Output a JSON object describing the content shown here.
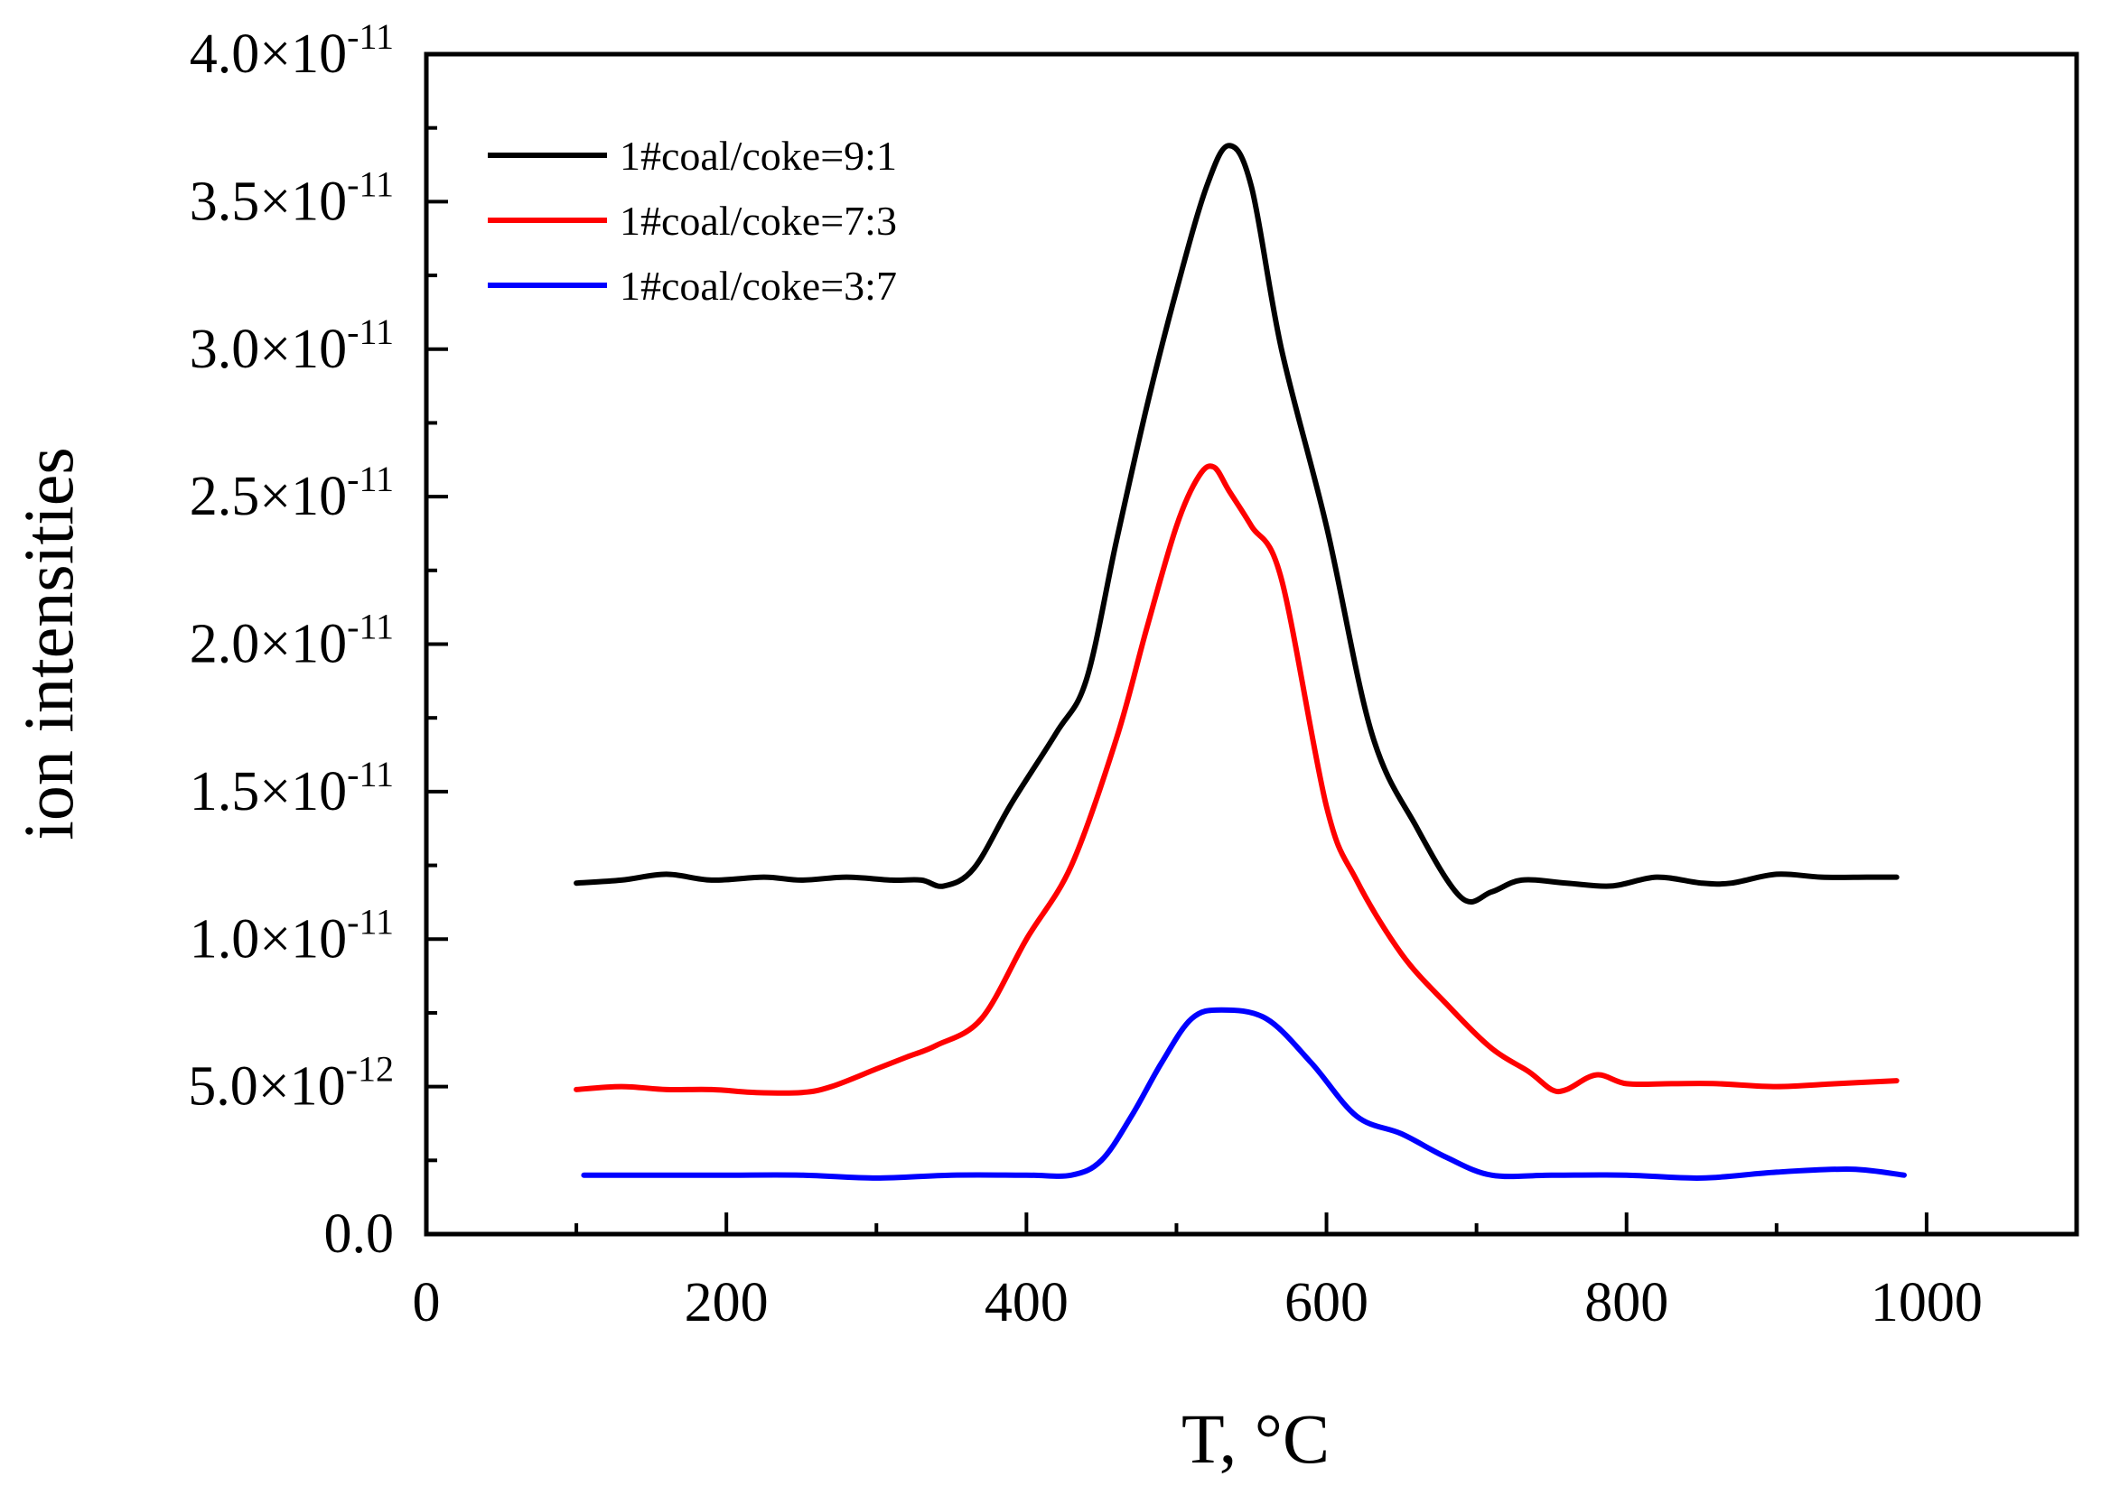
{
  "chart_data": {
    "type": "line",
    "title": "",
    "xlabel": "T, °C",
    "ylabel": "ion intensities",
    "xlim": [
      0,
      1100
    ],
    "ylim": [
      0,
      4e-11
    ],
    "x_ticks": [
      {
        "value": 0,
        "label": "0"
      },
      {
        "value": 200,
        "label": "200"
      },
      {
        "value": 400,
        "label": "400"
      },
      {
        "value": 600,
        "label": "600"
      },
      {
        "value": 800,
        "label": "800"
      },
      {
        "value": 1000,
        "label": "1000"
      }
    ],
    "y_ticks": [
      {
        "value": 0,
        "label": "0.0",
        "exp": ""
      },
      {
        "value": 5e-12,
        "label": "5.0×10",
        "exp": "-12"
      },
      {
        "value": 1e-11,
        "label": "1.0×10",
        "exp": "-11"
      },
      {
        "value": 1.5e-11,
        "label": "1.5×10",
        "exp": "-11"
      },
      {
        "value": 2e-11,
        "label": "2.0×10",
        "exp": "-11"
      },
      {
        "value": 2.5e-11,
        "label": "2.5×10",
        "exp": "-11"
      },
      {
        "value": 3e-11,
        "label": "3.0×10",
        "exp": "-11"
      },
      {
        "value": 3.5e-11,
        "label": "3.5×10",
        "exp": "-11"
      },
      {
        "value": 4e-11,
        "label": "4.0×10",
        "exp": "-11"
      }
    ],
    "legend_position": "top-left",
    "grid": false,
    "series": [
      {
        "name": "1#coal/coke=9:1",
        "color": "#000000",
        "x": [
          100,
          130,
          160,
          190,
          225,
          250,
          280,
          310,
          330,
          345,
          365,
          390,
          420,
          440,
          460,
          480,
          500,
          520,
          535,
          550,
          570,
          600,
          630,
          660,
          690,
          710,
          730,
          760,
          790,
          820,
          850,
          870,
          900,
          930,
          960,
          980
        ],
        "y": [
          1.19e-11,
          1.2e-11,
          1.22e-11,
          1.2e-11,
          1.21e-11,
          1.2e-11,
          1.21e-11,
          1.2e-11,
          1.2e-11,
          1.18e-11,
          1.24e-11,
          1.46e-11,
          1.7e-11,
          1.88e-11,
          2.35e-11,
          2.8e-11,
          3.2e-11,
          3.55e-11,
          3.69e-11,
          3.55e-11,
          3e-11,
          2.4e-11,
          1.7e-11,
          1.38e-11,
          1.14e-11,
          1.16e-11,
          1.2e-11,
          1.19e-11,
          1.18e-11,
          1.21e-11,
          1.19e-11,
          1.19e-11,
          1.22e-11,
          1.21e-11,
          1.21e-11,
          1.21e-11
        ]
      },
      {
        "name": "1#coal/coke=7:3",
        "color": "#ff0000",
        "x": [
          100,
          130,
          160,
          190,
          220,
          250,
          270,
          300,
          320,
          340,
          370,
          400,
          430,
          460,
          480,
          500,
          515,
          525,
          535,
          550,
          570,
          600,
          620,
          650,
          680,
          710,
          735,
          750,
          760,
          780,
          800,
          830,
          860,
          900,
          940,
          980
        ],
        "y": [
          4.9e-12,
          5e-12,
          4.9e-12,
          4.9e-12,
          4.8e-12,
          4.8e-12,
          5e-12,
          5.6e-12,
          6e-12,
          6.4e-12,
          7.3e-12,
          1e-11,
          1.25e-11,
          1.68e-11,
          2.05e-11,
          2.4e-11,
          2.57e-11,
          2.6e-11,
          2.52e-11,
          2.4e-11,
          2.22e-11,
          1.45e-11,
          1.2e-11,
          9.5e-12,
          7.8e-12,
          6.3e-12,
          5.5e-12,
          4.9e-12,
          4.9e-12,
          5.4e-12,
          5.1e-12,
          5.1e-12,
          5.1e-12,
          5e-12,
          5.1e-12,
          5.2e-12
        ]
      },
      {
        "name": "1#coal/coke=3:7",
        "color": "#0000ff",
        "x": [
          105,
          150,
          200,
          250,
          300,
          350,
          400,
          430,
          450,
          470,
          490,
          510,
          530,
          560,
          590,
          620,
          650,
          680,
          710,
          750,
          800,
          850,
          900,
          950,
          985
        ],
        "y": [
          2e-12,
          2e-12,
          2e-12,
          2e-12,
          1.9e-12,
          2e-12,
          2e-12,
          2e-12,
          2.5e-12,
          4e-12,
          5.8e-12,
          7.3e-12,
          7.6e-12,
          7.3e-12,
          5.8e-12,
          4e-12,
          3.4e-12,
          2.6e-12,
          2e-12,
          2e-12,
          2e-12,
          1.9e-12,
          2.1e-12,
          2.2e-12,
          2e-12
        ]
      }
    ]
  }
}
